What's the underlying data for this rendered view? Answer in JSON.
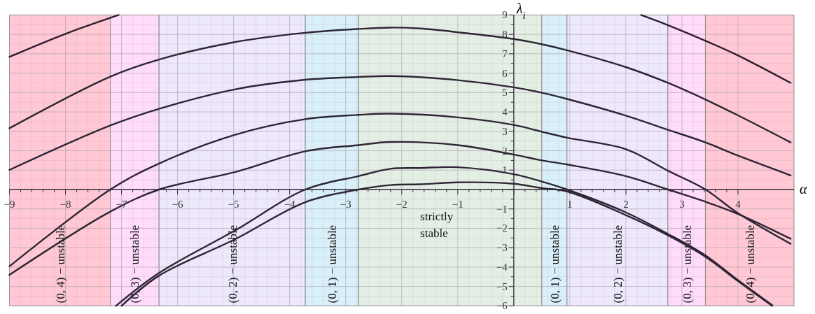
{
  "chart_data": {
    "type": "line",
    "xlabel": "α",
    "ylabel": "λ$_{i}$",
    "xlim": [
      -9,
      5
    ],
    "ylim": [
      -6,
      9
    ],
    "xticks": [
      -9,
      -8,
      -7,
      -6,
      -5,
      -4,
      -3,
      -2,
      -1,
      {
        "value": 0,
        "label": null
      },
      1,
      2,
      3,
      4
    ],
    "yticks": [
      -6,
      -5,
      -4,
      -3,
      -2,
      -1,
      {
        "value": 0,
        "label": null
      },
      1,
      2,
      3,
      4,
      5,
      6,
      7,
      8,
      9
    ],
    "grid": true,
    "marker": "none",
    "line_style": "solid",
    "bands": [
      {
        "axis": "x",
        "from": -9,
        "to": -7.2,
        "label": "(0, 4) − unstable",
        "color": "#ffc8d4"
      },
      {
        "axis": "x",
        "from": -7.2,
        "to": -6.33,
        "label": "(0, 3) − unstable",
        "color": "#ffdcfb"
      },
      {
        "axis": "x",
        "from": -6.33,
        "to": -3.72,
        "label": "(0, 2) − unstable",
        "color": "#eee8fc"
      },
      {
        "axis": "x",
        "from": -3.72,
        "to": -2.77,
        "label": "(0, 1) − unstable",
        "color": "#d9f0fa"
      },
      {
        "axis": "x",
        "from": -2.77,
        "to": 0.5,
        "label": "strictly stable",
        "color": "#e3efe4"
      },
      {
        "axis": "x",
        "from": 0.5,
        "to": 0.95,
        "label": "(0, 1) − unstable",
        "color": "#d9f0fa"
      },
      {
        "axis": "x",
        "from": 0.95,
        "to": 2.75,
        "label": "(0, 2) − unstable",
        "color": "#eee8fc"
      },
      {
        "axis": "x",
        "from": 2.75,
        "to": 3.42,
        "label": "(0, 3) − unstable",
        "color": "#ffdcfb"
      },
      {
        "axis": "x",
        "from": 3.42,
        "to": 5,
        "label": "(0, 4) − unstable",
        "color": "#ffc8d4"
      }
    ],
    "series": [
      {
        "color": "#2e1f30",
        "x": [
          -9,
          -7.99,
          -7.05,
          0,
          2.27,
          2.73,
          3.42,
          3.99,
          4.94
        ],
        "values": [
          6.84,
          8.04,
          9,
          null,
          9,
          8.5,
          7.67,
          6.93,
          5.5
        ]
      },
      {
        "color": "#2e2635",
        "x": [
          -9,
          -7.2,
          -6.33,
          -4.98,
          -3.72,
          -2.77,
          -2.2,
          -1.67,
          -1,
          0,
          0.5,
          0.95,
          2,
          2.75,
          3.42,
          3.99,
          4.94
        ],
        "values": [
          3.16,
          5.82,
          6.7,
          7.6,
          8.08,
          8.28,
          8.35,
          8.3,
          8.11,
          7.76,
          7.49,
          7.18,
          6.31,
          5.5,
          4.64,
          3.84,
          2.43
        ]
      },
      {
        "color": "#2e2635",
        "x": [
          -9,
          -7.2,
          -6.33,
          -4.98,
          -3.72,
          -2.77,
          -2.2,
          -1,
          0,
          0.5,
          0.95,
          2,
          2.75,
          3.42,
          3.99,
          4.94
        ],
        "values": [
          1.01,
          3.3,
          4.16,
          5.16,
          5.66,
          5.8,
          5.85,
          5.64,
          5.27,
          4.99,
          4.67,
          3.81,
          3.08,
          2.43,
          1.76,
          0.73
        ]
      },
      {
        "color": "#2e2635",
        "x": [
          -9,
          -7.2,
          -6.33,
          -4.98,
          -3.72,
          -2.77,
          -2.2,
          -1,
          0,
          0.5,
          0.95,
          2,
          2.75,
          3.42,
          3.99,
          4.94
        ],
        "values": [
          -3.96,
          0,
          1.34,
          2.82,
          3.63,
          3.85,
          3.91,
          3.72,
          3.33,
          2.98,
          2.67,
          2.08,
          0.97,
          0,
          -1.2,
          -2.8
        ]
      },
      {
        "color": "#2e2635",
        "x": [
          -9,
          -7.2,
          -6.33,
          -4.98,
          -3.72,
          -2.77,
          -2.2,
          -1,
          0,
          0.5,
          0.95,
          2,
          2.75,
          3.42,
          3.99,
          4.94
        ],
        "values": [
          -4.4,
          -1.14,
          0,
          0.9,
          1.97,
          2.29,
          2.45,
          2.29,
          1.8,
          1.5,
          1.29,
          0.69,
          0,
          -0.63,
          -1.25,
          -2.54
        ]
      },
      {
        "color": "#2e2635",
        "x": [
          -7.1,
          -6.33,
          -4.98,
          -3.72,
          -2.77,
          -2.2,
          -1.67,
          -1,
          0,
          0.5,
          0.95,
          2,
          2.75,
          3.42,
          3.99,
          4.61
        ],
        "values": [
          -6,
          -4.3,
          -2.12,
          0,
          0.69,
          1.07,
          1.11,
          1.15,
          0.79,
          0.41,
          0,
          -1.18,
          -2.29,
          -3.4,
          -4.65,
          -5.96
        ]
      },
      {
        "color": "#2e2635",
        "x": [
          -7,
          -6.33,
          -4.98,
          -3.72,
          -2.77,
          -2.2,
          -1.67,
          -1,
          0,
          0.5,
          0.95,
          2,
          2.75,
          3.42,
          3.99,
          4.61
        ],
        "values": [
          -6,
          -4.44,
          -2.57,
          -0.65,
          0,
          0.23,
          0.27,
          0.37,
          0.3,
          0.07,
          -0.1,
          -1.32,
          -2.36,
          -3.47,
          -4.7,
          -6
        ]
      }
    ]
  }
}
